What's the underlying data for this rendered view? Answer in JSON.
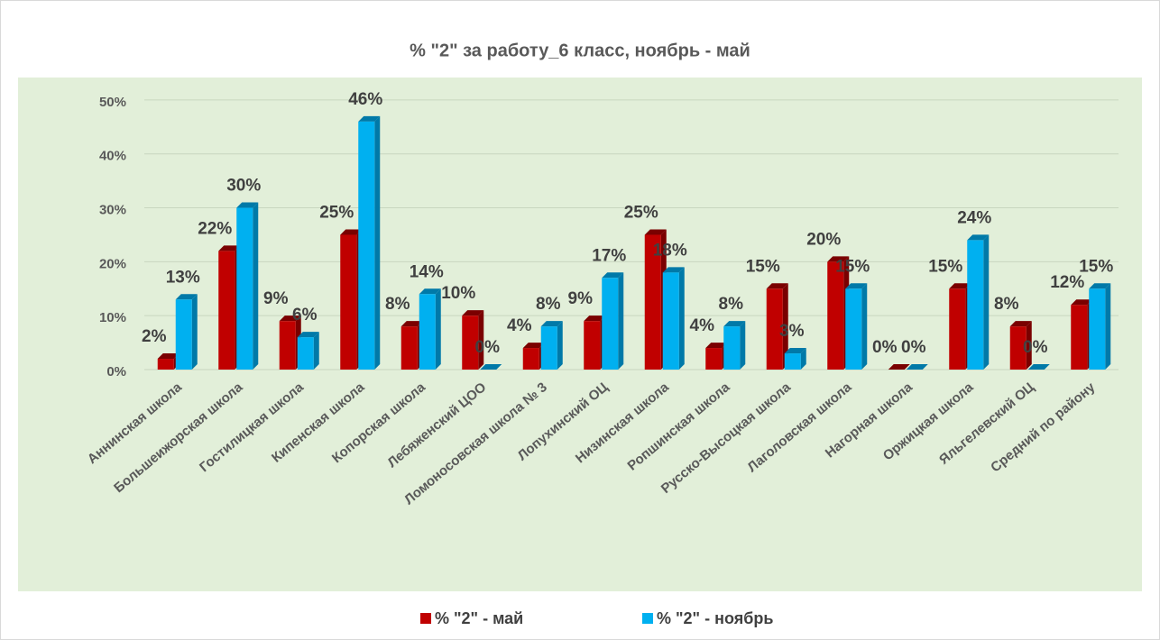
{
  "chart_data": {
    "type": "bar3d",
    "title": "% \"2\" за работу_6 класс, ноябрь - май",
    "categories": [
      "Аннинская школа",
      "Большеижорская школа",
      "Гостилицкая школа",
      "Кипенская школа",
      "Копорская школа",
      "Лебяженский ЦОО",
      "Ломоносовская школа № 3",
      "Лопухинский ОЦ",
      "Низинская школа",
      "Ропшинская школа",
      "Русско-Высоцкая школа",
      "Лаголовская школа",
      "Нагорная школа",
      "Оржицкая школа",
      "Яльгелевский ОЦ",
      "Средний по району"
    ],
    "series": [
      {
        "name": "% \"2\" - май",
        "color": "#c00000",
        "side": "#7a0000",
        "values": [
          2,
          22,
          9,
          25,
          8,
          10,
          4,
          9,
          25,
          4,
          15,
          20,
          0,
          15,
          8,
          12
        ],
        "value_labels": [
          "2%",
          "22%",
          "9%",
          "25%",
          "8%",
          "10%",
          "4%",
          "9%",
          "25%",
          "4%",
          "15%",
          "20%",
          "0%",
          "15%",
          "8%",
          "12%"
        ]
      },
      {
        "name": "% \"2\" - ноябрь",
        "color": "#00b0f0",
        "side": "#0079a8",
        "values": [
          13,
          30,
          6,
          46,
          14,
          0,
          8,
          17,
          18,
          8,
          3,
          15,
          0,
          24,
          0,
          15
        ],
        "value_labels": [
          "13%",
          "30%",
          "6%",
          "46%",
          "14%",
          "0%",
          "8%",
          "17%",
          "18%",
          "8%",
          "3%",
          "15%",
          "0%",
          "24%",
          "0%",
          "15%"
        ]
      }
    ],
    "ylim": [
      0,
      55
    ],
    "yticks": [
      {
        "value": 0,
        "label": "0%"
      },
      {
        "value": 10,
        "label": "10%"
      },
      {
        "value": 20,
        "label": "20%"
      },
      {
        "value": 30,
        "label": "30%"
      },
      {
        "value": 40,
        "label": "40%"
      },
      {
        "value": 50,
        "label": "50%"
      }
    ],
    "grid": true,
    "legend": "bottom"
  }
}
